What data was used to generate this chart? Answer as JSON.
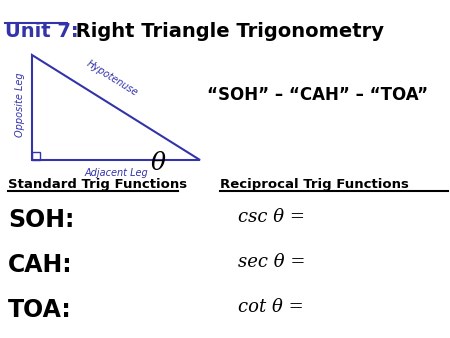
{
  "title_unit": "Unit 7:",
  "title_rest": " Right Triangle Trigonometry",
  "soh_cah_toa": "“SOH” – “CAH” – “TOA”",
  "std_header": "Standard Trig Functions",
  "rec_header": "Reciprocal Trig Functions",
  "soh_label": "SOH:",
  "cah_label": "CAH:",
  "toa_label": "TOA:",
  "csc_label": "csc θ =",
  "sec_label": "sec θ =",
  "cot_label": "cot θ =",
  "opposite_leg": "Opposite Leg",
  "hypotenuse": "Hypotenuse",
  "adjacent_leg": "Adjacent Leg",
  "theta": "θ",
  "triangle_color": "#3333aa",
  "background_color": "#ffffff",
  "title_color": "#000000",
  "unit_color": "#3333aa",
  "soh_cah_toa_color": "#000000",
  "label_color": "#3333aa"
}
